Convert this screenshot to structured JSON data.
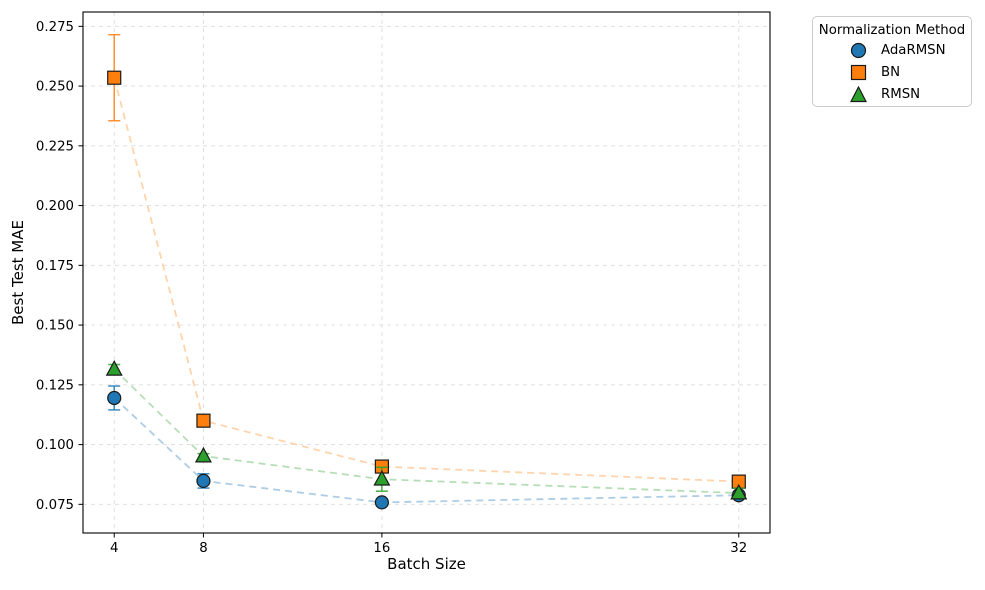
{
  "figure": {
    "background": "#ffffff",
    "legend": {
      "title": "Normalization Method",
      "position": "outside-top-right",
      "items": [
        {
          "label": "AdaRMSN",
          "marker": "circle",
          "color": "#1f77b4"
        },
        {
          "label": "BN",
          "marker": "square",
          "color": "#ff7f0e"
        },
        {
          "label": "RMSN",
          "marker": "triangle",
          "color": "#2ca02c"
        }
      ]
    }
  },
  "chart_data": {
    "type": "scatter",
    "title": "",
    "xlabel": "Batch Size",
    "ylabel": "Best Test MAE",
    "xlim": [
      2.6,
      33.4
    ],
    "ylim": [
      0.063,
      0.281
    ],
    "grid": true,
    "grid_color": "#dcdcdc",
    "axis_color": "#000000",
    "x_ticks": [
      4,
      8,
      16,
      32
    ],
    "x_tick_labels": [
      "4",
      "8",
      "16",
      "32"
    ],
    "y_ticks": [
      0.075,
      0.1,
      0.125,
      0.15,
      0.175,
      0.2,
      0.225,
      0.25,
      0.275
    ],
    "y_tick_labels": [
      "0.075",
      "0.100",
      "0.125",
      "0.150",
      "0.175",
      "0.200",
      "0.225",
      "0.250",
      "0.275"
    ],
    "x": [
      4,
      8,
      16,
      32
    ],
    "series": [
      {
        "name": "AdaRMSN",
        "marker": "circle",
        "color": "#1f77b4",
        "line_color": "#aecde4",
        "line_style": "dashed",
        "y": [
          0.1195,
          0.0848,
          0.0758,
          0.0788
        ],
        "yerr": [
          0.005,
          0.003,
          0.001,
          0.001
        ]
      },
      {
        "name": "BN",
        "marker": "square",
        "color": "#ff7f0e",
        "line_color": "#ffd4ac",
        "line_style": "dashed",
        "y": [
          0.2535,
          0.11,
          0.0908,
          0.0845
        ],
        "yerr": [
          0.018,
          0.002,
          0.002,
          0.001
        ]
      },
      {
        "name": "RMSN",
        "marker": "triangle",
        "color": "#2ca02c",
        "line_color": "#b6deb6",
        "line_style": "dashed",
        "y": [
          0.1315,
          0.0952,
          0.0855,
          0.0797
        ],
        "yerr": [
          0.002,
          0.001,
          0.005,
          0.002
        ]
      }
    ]
  }
}
